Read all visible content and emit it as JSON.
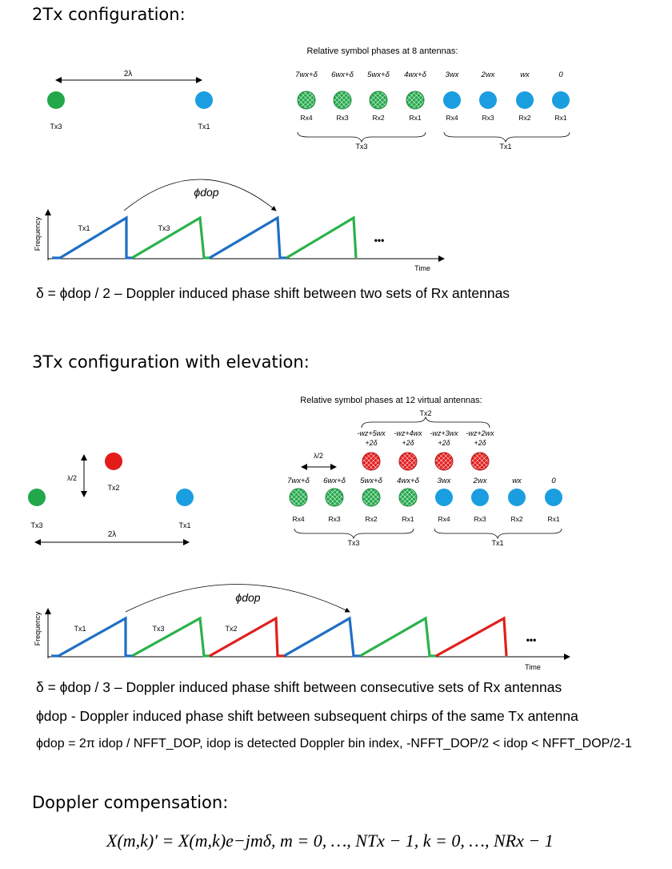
{
  "sections": {
    "tx2_title": "2Tx configuration:",
    "tx3_title": "3Tx configuration with elevation:",
    "doppler_title": "Doppler compensation:"
  },
  "labels": {
    "tx1": "Tx1",
    "tx2": "Tx2",
    "tx3": "Tx3",
    "rx1": "Rx1",
    "rx2": "Rx2",
    "rx3": "Rx3",
    "rx4": "Rx4",
    "two_lambda": "2λ",
    "half_lambda": "λ/2",
    "frequency": "Frequency",
    "time": "Time",
    "ellipsis": "•••",
    "phi_dop": "ϕdop"
  },
  "diagram1": {
    "title": "Relative symbol phases at 8 antennas:",
    "phases": [
      "7wx+δ",
      "6wx+δ",
      "5wx+δ",
      "4wx+δ",
      "3wx",
      "2wx",
      "wx",
      "0"
    ],
    "rx_labels": [
      "Rx4",
      "Rx3",
      "Rx2",
      "Rx1",
      "Rx4",
      "Rx3",
      "Rx2",
      "Rx1"
    ],
    "group_labels": [
      "Tx3",
      "Tx1"
    ],
    "chirp_labels": [
      "Tx1",
      "Tx3"
    ],
    "equation": "δ = ϕdop / 2 – Doppler induced phase shift between two sets of Rx antennas"
  },
  "diagram2": {
    "title": "Relative symbol phases at 12 virtual  antennas:",
    "top_group_label": "Tx2",
    "top_phases_line1": [
      "-wz+5wx",
      "-wz+4wx",
      "-wz+3wx",
      "-wz+2wx"
    ],
    "top_phases_line2": [
      "+2δ",
      "+2δ",
      "+2δ",
      "+2δ"
    ],
    "phases": [
      "7wx+δ",
      "6wx+δ",
      "5wx+δ",
      "4wx+δ",
      "3wx",
      "2wx",
      "wx",
      "0"
    ],
    "rx_labels": [
      "Rx4",
      "Rx3",
      "Rx2",
      "Rx1",
      "Rx4",
      "Rx3",
      "Rx2",
      "Rx1"
    ],
    "group_labels": [
      "Tx3",
      "Tx1"
    ],
    "chirp_labels": [
      "Tx1",
      "Tx3",
      "Tx2"
    ]
  },
  "notes": {
    "eq_delta3": "δ = ϕdop / 3 – Doppler induced phase shift between consecutive sets of Rx antennas",
    "eq_phidop_desc": "ϕdop - Doppler induced phase shift between subsequent chirps of the same Tx antenna",
    "eq_phidop_formula": "ϕdop = 2π idop / NFFT_DOP, idop is detected Doppler bin index, -NFFT_DOP/2 < idop < NFFT_DOP/2-1",
    "compensation_formula": "X(m,k)′ = X(m,k)e−jmδ, m = 0, …, NTx − 1, k = 0, …, NRx − 1"
  },
  "colors": {
    "green": "#22a84a",
    "blue": "#1a9ee0",
    "red": "#e31b1b",
    "chirp_blue": "#1f6fc4",
    "chirp_green": "#2bb24c",
    "chirp_red": "#e0201c"
  }
}
